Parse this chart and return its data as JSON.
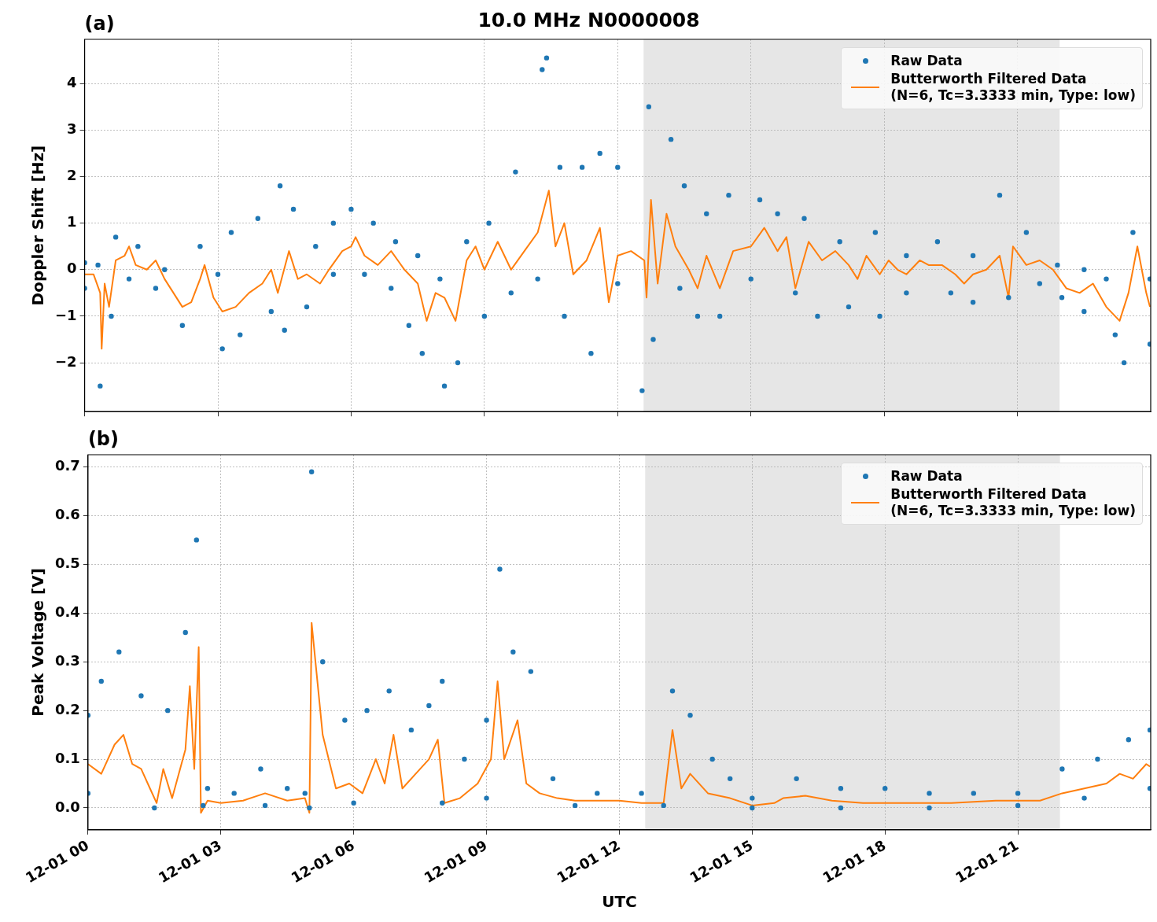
{
  "chart_data": [
    {
      "type": "scatter",
      "title": "10.0 MHz N0000008",
      "annotations": [
        "(a)"
      ],
      "ylabel": "Doppler Shift [Hz]",
      "xlim": [
        "--12-01T00:00",
        "--12-02T00:00"
      ],
      "xticks": [
        {
          "value": "--12-01T00:00",
          "label": null
        },
        {
          "value": "--12-01T03:00",
          "label": null
        },
        {
          "value": "--12-01T06:00",
          "label": null
        },
        {
          "value": "--12-01T09:00",
          "label": null
        },
        {
          "value": "--12-01T12:00",
          "label": null
        },
        {
          "value": "--12-01T15:00",
          "label": null
        },
        {
          "value": "--12-01T18:00",
          "label": null
        },
        {
          "value": "--12-01T21:00",
          "label": null
        }
      ],
      "ylim": [
        -3.05,
        4.95
      ],
      "yticks": [
        {
          "value": -2,
          "label": "−2"
        },
        {
          "value": -1,
          "label": "−1"
        },
        0,
        1,
        2,
        3,
        4
      ],
      "tick_labels": "y",
      "grid": true,
      "legend": "top right",
      "bands": [
        {
          "axis": "x",
          "from": "--12-01T12:35",
          "to": "--12-01T21:57",
          "color": "#e6e6e6"
        }
      ],
      "series": [
        {
          "name": "Raw Data",
          "type": "scatter",
          "marker": "circle",
          "color": "#1f77b4",
          "x": [
            "--12-01T00:00",
            "--12-01T00:18",
            "--12-01T00:42",
            "--12-01T01:12",
            "--12-01T01:48",
            "--12-01T02:36",
            "--12-01T03:00",
            "--12-01T03:18",
            "--12-01T03:54",
            "--12-01T04:24",
            "--12-01T04:42",
            "--12-01T05:12",
            "--12-01T05:36",
            "--12-01T06:00",
            "--12-01T06:30",
            "--12-01T07:00",
            "--12-01T07:30",
            "--12-01T08:00",
            "--12-01T08:36",
            "--12-01T09:06",
            "--12-01T09:42",
            "--12-01T10:18",
            "--12-01T10:24",
            "--12-01T10:42",
            "--12-01T11:12",
            "--12-01T11:36",
            "--12-01T12:00",
            "--12-01T12:42",
            "--12-01T13:12",
            "--12-01T13:30",
            "--12-01T14:00",
            "--12-01T14:30",
            "--12-01T15:12",
            "--12-01T15:36",
            "--12-01T16:12",
            "--12-01T17:00",
            "--12-01T17:48",
            "--12-01T18:30",
            "--12-01T19:12",
            "--12-01T20:00",
            "--12-01T20:36",
            "--12-01T21:12",
            "--12-01T21:54",
            "--12-01T22:30",
            "--12-01T23:00",
            "--12-01T23:36",
            "--12-01T23:59",
            "--12-01T00:00",
            "--12-01T00:21",
            "--12-01T00:36",
            "--12-01T01:00",
            "--12-01T01:36",
            "--12-01T02:12",
            "--12-01T03:06",
            "--12-01T03:30",
            "--12-01T04:12",
            "--12-01T04:30",
            "--12-01T05:00",
            "--12-01T05:36",
            "--12-01T06:18",
            "--12-01T06:54",
            "--12-01T07:18",
            "--12-01T07:36",
            "--12-01T08:06",
            "--12-01T08:24",
            "--12-01T09:00",
            "--12-01T09:36",
            "--12-01T10:12",
            "--12-01T10:48",
            "--12-01T11:24",
            "--12-01T12:00",
            "--12-01T12:33",
            "--12-01T12:48",
            "--12-01T13:24",
            "--12-01T13:48",
            "--12-01T14:18",
            "--12-01T15:00",
            "--12-01T16:00",
            "--12-01T16:30",
            "--12-01T17:12",
            "--12-01T17:54",
            "--12-01T18:30",
            "--12-01T19:30",
            "--12-01T20:00",
            "--12-01T20:48",
            "--12-01T21:30",
            "--12-01T22:00",
            "--12-01T22:30",
            "--12-01T23:12",
            "--12-01T23:24",
            "--12-01T23:59"
          ],
          "values": [
            0.15,
            0.1,
            0.7,
            0.5,
            0,
            0.5,
            -0.1,
            0.8,
            1.1,
            1.8,
            1.3,
            0.5,
            1,
            1.3,
            1,
            0.6,
            0.3,
            -0.2,
            0.6,
            1,
            2.1,
            4.3,
            4.55,
            2.2,
            2.2,
            2.5,
            2.2,
            3.5,
            2.8,
            1.8,
            1.2,
            1.6,
            1.5,
            1.2,
            1.1,
            0.6,
            0.8,
            0.3,
            0.6,
            0.3,
            1.6,
            0.8,
            0.1,
            0,
            -0.2,
            0.8,
            -0.2,
            -0.4,
            -2.5,
            -1,
            -0.2,
            -0.4,
            -1.2,
            -1.7,
            -1.4,
            -0.9,
            -1.3,
            -0.8,
            -0.1,
            -0.1,
            -0.4,
            -1.2,
            -1.8,
            -2.5,
            -2,
            -1,
            -0.5,
            -0.2,
            -1,
            -1.8,
            -0.3,
            -2.6,
            -1.5,
            -0.4,
            -1,
            -1,
            -0.2,
            -0.5,
            -1,
            -0.8,
            -1,
            -0.5,
            -0.5,
            -0.7,
            -0.6,
            -0.3,
            -0.6,
            -0.9,
            -1.4,
            -2,
            -1.6
          ]
        },
        {
          "name": "Butterworth Filtered Data\n(N=6, Tc=3.3333 min, Type: low)",
          "type": "line",
          "marker": "none",
          "line_style": "solid",
          "color": "#ff7f0e",
          "x": [
            "--12-01T00:00",
            "--12-01T00:12",
            "--12-01T00:21",
            "--12-01T00:23",
            "--12-01T00:27",
            "--12-01T00:33",
            "--12-01T00:42",
            "--12-01T00:54",
            "--12-01T01:00",
            "--12-01T01:09",
            "--12-01T01:24",
            "--12-01T01:36",
            "--12-01T01:48",
            "--12-01T02:00",
            "--12-01T02:12",
            "--12-01T02:24",
            "--12-01T02:36",
            "--12-01T02:42",
            "--12-01T02:54",
            "--12-01T03:06",
            "--12-01T03:24",
            "--12-01T03:42",
            "--12-01T04:00",
            "--12-01T04:12",
            "--12-01T04:21",
            "--12-01T04:36",
            "--12-01T04:48",
            "--12-01T05:00",
            "--12-01T05:18",
            "--12-01T05:30",
            "--12-01T05:48",
            "--12-01T06:00",
            "--12-01T06:06",
            "--12-01T06:18",
            "--12-01T06:36",
            "--12-01T06:54",
            "--12-01T07:12",
            "--12-01T07:30",
            "--12-01T07:42",
            "--12-01T07:54",
            "--12-01T08:06",
            "--12-01T08:21",
            "--12-01T08:36",
            "--12-01T08:48",
            "--12-01T09:00",
            "--12-01T09:18",
            "--12-01T09:36",
            "--12-01T09:54",
            "--12-01T10:12",
            "--12-01T10:27",
            "--12-01T10:36",
            "--12-01T10:48",
            "--12-01T11:00",
            "--12-01T11:18",
            "--12-01T11:36",
            "--12-01T11:48",
            "--12-01T12:00",
            "--12-01T12:18",
            "--12-01T12:36",
            "--12-01T12:39",
            "--12-01T12:45",
            "--12-01T12:54",
            "--12-01T13:06",
            "--12-01T13:18",
            "--12-01T13:36",
            "--12-01T13:48",
            "--12-01T14:00",
            "--12-01T14:18",
            "--12-01T14:36",
            "--12-01T15:00",
            "--12-01T15:18",
            "--12-01T15:36",
            "--12-01T15:48",
            "--12-01T16:00",
            "--12-01T16:18",
            "--12-01T16:36",
            "--12-01T16:54",
            "--12-01T17:12",
            "--12-01T17:24",
            "--12-01T17:36",
            "--12-01T17:54",
            "--12-01T18:06",
            "--12-01T18:18",
            "--12-01T18:30",
            "--12-01T18:48",
            "--12-01T19:00",
            "--12-01T19:18",
            "--12-01T19:36",
            "--12-01T19:48",
            "--12-01T20:00",
            "--12-01T20:18",
            "--12-01T20:36",
            "--12-01T20:48",
            "--12-01T20:54",
            "--12-01T21:12",
            "--12-01T21:30",
            "--12-01T21:48",
            "--12-01T22:06",
            "--12-01T22:24",
            "--12-01T22:42",
            "--12-01T23:00",
            "--12-01T23:18",
            "--12-01T23:30",
            "--12-01T23:42",
            "--12-01T23:54",
            "--12-01T23:59"
          ],
          "values": [
            -0.1,
            -0.1,
            -0.5,
            -1.7,
            -0.3,
            -0.8,
            0.2,
            0.3,
            0.5,
            0.1,
            0,
            0.2,
            -0.2,
            -0.5,
            -0.8,
            -0.7,
            -0.2,
            0.1,
            -0.6,
            -0.9,
            -0.8,
            -0.5,
            -0.3,
            0,
            -0.5,
            0.4,
            -0.2,
            -0.1,
            -0.3,
            0,
            0.4,
            0.5,
            0.7,
            0.3,
            0.1,
            0.4,
            0,
            -0.3,
            -1.1,
            -0.5,
            -0.6,
            -1.1,
            0.2,
            0.5,
            0,
            0.6,
            0,
            0.4,
            0.8,
            1.7,
            0.5,
            1,
            -0.1,
            0.2,
            0.9,
            -0.7,
            0.3,
            0.4,
            0.2,
            -0.6,
            1.5,
            -0.3,
            1.2,
            0.5,
            0,
            -0.4,
            0.3,
            -0.4,
            0.4,
            0.5,
            0.9,
            0.4,
            0.7,
            -0.4,
            0.6,
            0.2,
            0.4,
            0.1,
            -0.2,
            0.3,
            -0.1,
            0.2,
            0,
            -0.1,
            0.2,
            0.1,
            0.1,
            -0.1,
            -0.3,
            -0.1,
            0,
            0.3,
            -0.6,
            0.5,
            0.1,
            0.2,
            0,
            -0.4,
            -0.5,
            -0.3,
            -0.8,
            -1.1,
            -0.5,
            0.5,
            -0.5,
            -0.8
          ]
        }
      ]
    },
    {
      "type": "scatter",
      "annotations": [
        "(b)"
      ],
      "ylabel": "Peak Voltage [V]",
      "xlabel": "UTC",
      "xlim": [
        "--12-01T00:00",
        "--12-02T00:00"
      ],
      "xticks": [
        {
          "value": "--12-01T00:00",
          "label": "12-01 00"
        },
        {
          "value": "--12-01T03:00",
          "label": "12-01 03"
        },
        {
          "value": "--12-01T06:00",
          "label": "12-01 06"
        },
        {
          "value": "--12-01T09:00",
          "label": "12-01 09"
        },
        {
          "value": "--12-01T12:00",
          "label": "12-01 12"
        },
        {
          "value": "--12-01T15:00",
          "label": "12-01 15"
        },
        {
          "value": "--12-01T18:00",
          "label": "12-01 18"
        },
        {
          "value": "--12-01T21:00",
          "label": "12-01 21"
        }
      ],
      "ylim": [
        -0.045,
        0.725
      ],
      "yticks": [
        {
          "value": 0,
          "label": "0.0"
        },
        0.1,
        0.2,
        0.3,
        0.4,
        0.5,
        0.6,
        0.7
      ],
      "grid": true,
      "legend": "top right",
      "bands": [
        {
          "axis": "x",
          "from": "--12-01T12:35",
          "to": "--12-01T21:57",
          "color": "#e6e6e6"
        }
      ],
      "series": [
        {
          "name": "Raw Data",
          "type": "scatter",
          "marker": "circle",
          "color": "#1f77b4",
          "x": [
            "--12-01T00:00",
            "--12-01T00:18",
            "--12-01T00:42",
            "--12-01T01:12",
            "--12-01T01:48",
            "--12-01T02:12",
            "--12-01T02:27",
            "--12-01T02:42",
            "--12-01T03:18",
            "--12-01T03:54",
            "--12-01T04:30",
            "--12-01T04:54",
            "--12-01T05:03",
            "--12-01T05:18",
            "--12-01T05:48",
            "--12-01T06:18",
            "--12-01T06:48",
            "--12-01T07:18",
            "--12-01T07:42",
            "--12-01T08:00",
            "--12-01T08:30",
            "--12-01T09:00",
            "--12-01T09:18",
            "--12-01T09:36",
            "--12-01T10:00",
            "--12-01T10:30",
            "--12-01T11:30",
            "--12-01T12:30",
            "--12-01T13:12",
            "--12-01T13:36",
            "--12-01T14:06",
            "--12-01T14:30",
            "--12-01T15:00",
            "--12-01T16:00",
            "--12-01T17:00",
            "--12-01T18:00",
            "--12-01T19:00",
            "--12-01T20:00",
            "--12-01T21:00",
            "--12-01T22:00",
            "--12-01T22:48",
            "--12-01T23:30",
            "--12-01T23:59",
            "--12-01T00:00",
            "--12-01T01:30",
            "--12-01T02:36",
            "--12-01T04:00",
            "--12-01T05:00",
            "--12-01T06:00",
            "--12-01T08:00",
            "--12-01T09:00",
            "--12-01T11:00",
            "--12-01T13:00",
            "--12-01T15:00",
            "--12-01T17:00",
            "--12-01T19:00",
            "--12-01T21:00",
            "--12-01T22:30",
            "--12-01T23:59"
          ],
          "values": [
            0.19,
            0.26,
            0.32,
            0.23,
            0.2,
            0.36,
            0.55,
            0.04,
            0.03,
            0.08,
            0.04,
            0.03,
            0.69,
            0.3,
            0.18,
            0.2,
            0.24,
            0.16,
            0.21,
            0.26,
            0.1,
            0.18,
            0.49,
            0.32,
            0.28,
            0.06,
            0.03,
            0.03,
            0.24,
            0.19,
            0.1,
            0.06,
            0.02,
            0.06,
            0.04,
            0.04,
            0.03,
            0.03,
            0.03,
            0.08,
            0.1,
            0.14,
            0.16,
            0.03,
            0,
            0.005,
            0.005,
            0,
            0.01,
            0.01,
            0.02,
            0.005,
            0.005,
            0,
            0,
            0,
            0.005,
            0.02,
            0.04
          ]
        },
        {
          "name": "Butterworth Filtered Data\n(N=6, Tc=3.3333 min, Type: low)",
          "type": "line",
          "marker": "none",
          "line_style": "solid",
          "color": "#ff7f0e",
          "x": [
            "--12-01T00:00",
            "--12-01T00:18",
            "--12-01T00:36",
            "--12-01T00:48",
            "--12-01T01:00",
            "--12-01T01:12",
            "--12-01T01:24",
            "--12-01T01:33",
            "--12-01T01:42",
            "--12-01T01:54",
            "--12-01T02:12",
            "--12-01T02:18",
            "--12-01T02:24",
            "--12-01T02:30",
            "--12-01T02:33",
            "--12-01T02:42",
            "--12-01T03:00",
            "--12-01T03:30",
            "--12-01T04:00",
            "--12-01T04:30",
            "--12-01T04:54",
            "--12-01T05:00",
            "--12-01T05:03",
            "--12-01T05:18",
            "--12-01T05:36",
            "--12-01T05:54",
            "--12-01T06:12",
            "--12-01T06:30",
            "--12-01T06:42",
            "--12-01T06:54",
            "--12-01T07:06",
            "--12-01T07:24",
            "--12-01T07:42",
            "--12-01T07:54",
            "--12-01T08:03",
            "--12-01T08:24",
            "--12-01T08:48",
            "--12-01T09:06",
            "--12-01T09:15",
            "--12-01T09:24",
            "--12-01T09:42",
            "--12-01T09:54",
            "--12-01T10:12",
            "--12-01T10:36",
            "--12-01T11:00",
            "--12-01T12:00",
            "--12-01T12:30",
            "--12-01T13:00",
            "--12-01T13:12",
            "--12-01T13:24",
            "--12-01T13:36",
            "--12-01T14:00",
            "--12-01T14:30",
            "--12-01T15:00",
            "--12-01T15:30",
            "--12-01T15:42",
            "--12-01T16:12",
            "--12-01T16:48",
            "--12-01T17:30",
            "--12-01T18:30",
            "--12-01T19:30",
            "--12-01T20:30",
            "--12-01T21:30",
            "--12-01T22:00",
            "--12-01T22:30",
            "--12-01T23:00",
            "--12-01T23:18",
            "--12-01T23:36",
            "--12-01T23:54",
            "--12-01T23:59"
          ],
          "values": [
            0.09,
            0.07,
            0.13,
            0.15,
            0.09,
            0.08,
            0.04,
            0.01,
            0.08,
            0.02,
            0.12,
            0.25,
            0.08,
            0.33,
            -0.01,
            0.015,
            0.01,
            0.015,
            0.03,
            0.015,
            0.02,
            -0.01,
            0.38,
            0.15,
            0.04,
            0.05,
            0.03,
            0.1,
            0.05,
            0.15,
            0.04,
            0.07,
            0.1,
            0.14,
            0.01,
            0.02,
            0.05,
            0.1,
            0.26,
            0.1,
            0.18,
            0.05,
            0.03,
            0.02,
            0.015,
            0.015,
            0.01,
            0.01,
            0.16,
            0.04,
            0.07,
            0.03,
            0.02,
            0.005,
            0.01,
            0.02,
            0.025,
            0.015,
            0.01,
            0.01,
            0.01,
            0.015,
            0.015,
            0.03,
            0.04,
            0.05,
            0.07,
            0.06,
            0.09,
            0.085
          ]
        }
      ]
    }
  ]
}
